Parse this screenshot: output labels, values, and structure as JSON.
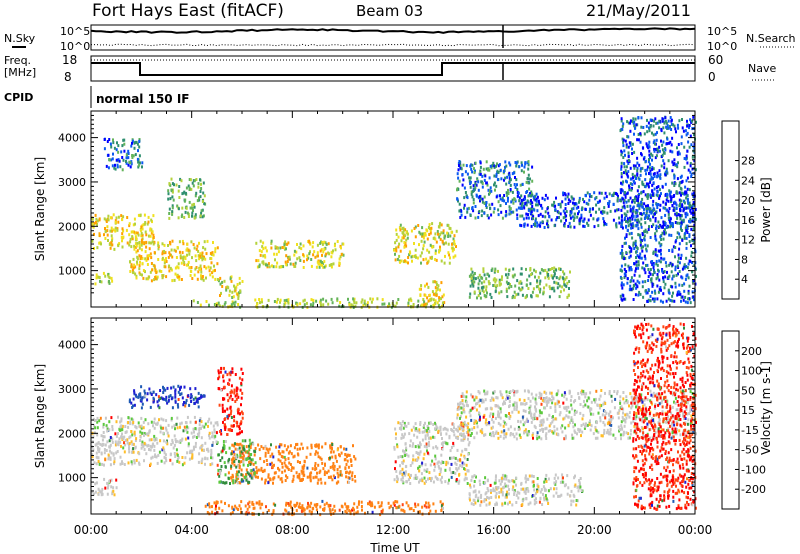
{
  "header": {
    "station": "Fort Hays East (fitACF)",
    "beam": "Beam 03",
    "date": "21/May/2011"
  },
  "side_labels": {
    "nsky": "N.Sky",
    "nsearch": "N.Search",
    "freq_line1": "Freq.",
    "freq_line2": "[MHz]",
    "nave": "Nave",
    "cpid": "CPID"
  },
  "top_panels": {
    "noise_ticks_left": [
      "10^5",
      "10^0"
    ],
    "noise_ticks_right": [
      "10^5",
      "10^0"
    ],
    "freq_ticks_left": [
      "18",
      "8"
    ],
    "freq_ticks_right": [
      "60",
      "0"
    ],
    "cpid_text": "normal 150 IF"
  },
  "colorbars": {
    "power": {
      "label": "Power [dB]",
      "ticks": [
        "4",
        "8",
        "12",
        "16",
        "20",
        "24",
        "28"
      ],
      "colors": [
        "#0000ff",
        "#0a5af0",
        "#2f8f6f",
        "#64b45a",
        "#b4d23c",
        "#f0e11e",
        "#ffa000",
        "#ff5000",
        "#ff0000"
      ]
    },
    "velocity": {
      "label": "Velocity [m s-1]",
      "ticks": [
        "200",
        "100",
        "50",
        "15",
        "-15",
        "-50",
        "-100",
        "-200"
      ],
      "colors": [
        "#1e1ed2",
        "#1e5ab4",
        "#328c3c",
        "#5ac83c",
        "#c8c8c8",
        "#ffbe28",
        "#ff8214",
        "#ff4614",
        "#ff0000"
      ]
    }
  },
  "chart_data": [
    {
      "type": "heatmap",
      "panel": "power",
      "ylabel": "Slant Range [km]",
      "xlabel": "",
      "xlim_hours": [
        0,
        24
      ],
      "ylim_km": [
        180,
        4600
      ],
      "y_ticks": [
        "1000",
        "2000",
        "3000",
        "4000"
      ],
      "x_ticks": [
        "00:00",
        "04:00",
        "08:00",
        "12:00",
        "16:00",
        "20:00",
        "00:00"
      ],
      "value_unit": "dB",
      "scatter_regions": [
        {
          "t": [
            0.0,
            0.8
          ],
          "r": [
            700,
            1000
          ],
          "v": 18
        },
        {
          "t": [
            0.0,
            2.5
          ],
          "r": [
            1500,
            2300
          ],
          "v": 22
        },
        {
          "t": [
            0.5,
            2.0
          ],
          "r": [
            3300,
            4000
          ],
          "v": 8
        },
        {
          "t": [
            1.5,
            5.0
          ],
          "r": [
            800,
            1700
          ],
          "v": 22
        },
        {
          "t": [
            3.0,
            4.5
          ],
          "r": [
            2200,
            3100
          ],
          "v": 14
        },
        {
          "t": [
            5.0,
            6.0
          ],
          "r": [
            400,
            900
          ],
          "v": 20
        },
        {
          "t": [
            6.5,
            10.0
          ],
          "r": [
            1100,
            1700
          ],
          "v": 20
        },
        {
          "t": [
            4.0,
            14.0
          ],
          "r": [
            200,
            400
          ],
          "v": 18
        },
        {
          "t": [
            12.0,
            14.5
          ],
          "r": [
            1200,
            2100
          ],
          "v": 20
        },
        {
          "t": [
            13.0,
            14.0
          ],
          "r": [
            200,
            800
          ],
          "v": 22
        },
        {
          "t": [
            14.5,
            17.5
          ],
          "r": [
            2200,
            3500
          ],
          "v": 8
        },
        {
          "t": [
            15.0,
            19.0
          ],
          "r": [
            400,
            1100
          ],
          "v": 14
        },
        {
          "t": [
            17.0,
            24.0
          ],
          "r": [
            2000,
            2800
          ],
          "v": 6
        },
        {
          "t": [
            21.0,
            24.0
          ],
          "r": [
            300,
            4500
          ],
          "v": 6
        }
      ]
    },
    {
      "type": "heatmap",
      "panel": "velocity",
      "ylabel": "Slant Range [km]",
      "xlabel": "Time UT",
      "xlim_hours": [
        0,
        24
      ],
      "ylim_km": [
        180,
        4600
      ],
      "y_ticks": [
        "1000",
        "2000",
        "3000",
        "4000"
      ],
      "x_ticks": [
        "00:00",
        "04:00",
        "08:00",
        "12:00",
        "16:00",
        "20:00",
        "00:00"
      ],
      "value_unit": "m s-1",
      "scatter_regions": [
        {
          "t": [
            0.0,
            5.0
          ],
          "r": [
            1300,
            2400
          ],
          "v": 0
        },
        {
          "t": [
            0.0,
            1.0
          ],
          "r": [
            600,
            1000
          ],
          "v": 0
        },
        {
          "t": [
            1.5,
            4.5
          ],
          "r": [
            2600,
            3100
          ],
          "v": 150
        },
        {
          "t": [
            5.0,
            6.0
          ],
          "r": [
            2000,
            3500
          ],
          "v": -150
        },
        {
          "t": [
            5.5,
            10.5
          ],
          "r": [
            900,
            1800
          ],
          "v": -50
        },
        {
          "t": [
            5.0,
            6.5
          ],
          "r": [
            900,
            1900
          ],
          "v": 30
        },
        {
          "t": [
            4.5,
            14.0
          ],
          "r": [
            200,
            500
          ],
          "v": -60
        },
        {
          "t": [
            12.0,
            15.0
          ],
          "r": [
            900,
            2300
          ],
          "v": 0
        },
        {
          "t": [
            14.5,
            24.0
          ],
          "r": [
            1900,
            3000
          ],
          "v": 0
        },
        {
          "t": [
            15.0,
            19.5
          ],
          "r": [
            400,
            1100
          ],
          "v": 0
        },
        {
          "t": [
            21.5,
            24.0
          ],
          "r": [
            300,
            4500
          ],
          "v": -150
        }
      ]
    }
  ]
}
